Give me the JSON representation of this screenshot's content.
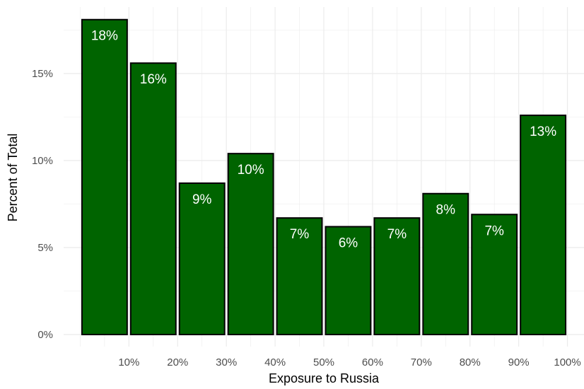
{
  "chart_data": {
    "type": "bar",
    "title": "",
    "xlabel": "Exposure to Russia",
    "ylabel": "Percent of Total",
    "x_tick_labels": [
      "10%",
      "20%",
      "30%",
      "40%",
      "50%",
      "60%",
      "70%",
      "80%",
      "90%",
      "100%"
    ],
    "y_ticks": [
      0,
      5,
      10,
      15
    ],
    "y_tick_labels": [
      "0%",
      "5%",
      "10%",
      "15%"
    ],
    "ylim": [
      0,
      18.5
    ],
    "bars": [
      {
        "x_start": 0,
        "x_end": 10,
        "value": 18.1,
        "label": "18%"
      },
      {
        "x_start": 10,
        "x_end": 20,
        "value": 15.6,
        "label": "16%"
      },
      {
        "x_start": 20,
        "x_end": 30,
        "value": 8.7,
        "label": "9%"
      },
      {
        "x_start": 30,
        "x_end": 40,
        "value": 10.4,
        "label": "10%"
      },
      {
        "x_start": 40,
        "x_end": 50,
        "value": 6.7,
        "label": "7%"
      },
      {
        "x_start": 50,
        "x_end": 60,
        "value": 6.2,
        "label": "6%"
      },
      {
        "x_start": 60,
        "x_end": 70,
        "value": 6.7,
        "label": "7%"
      },
      {
        "x_start": 70,
        "x_end": 80,
        "value": 8.1,
        "label": "8%"
      },
      {
        "x_start": 80,
        "x_end": 90,
        "value": 6.9,
        "label": "7%"
      },
      {
        "x_start": 90,
        "x_end": 100,
        "value": 12.6,
        "label": "13%"
      }
    ],
    "bar_color": "#006400",
    "bar_outline": "#000000",
    "label_color": "#ffffff",
    "grid": true,
    "grid_color": "#ebebeb",
    "legend": "none"
  }
}
